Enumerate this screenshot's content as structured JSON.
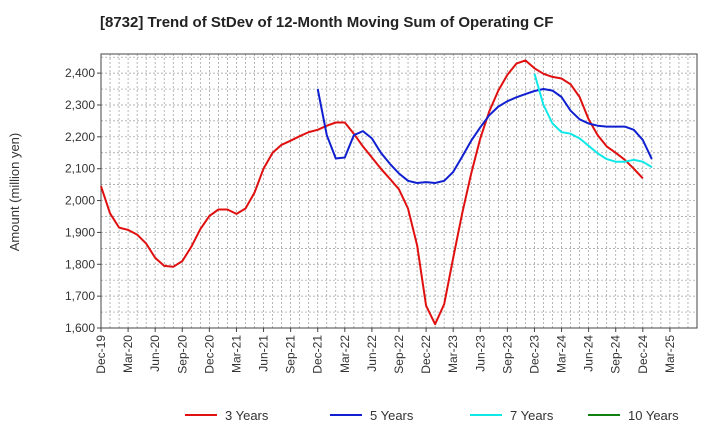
{
  "chart_data": {
    "type": "line",
    "title": "[8732]  Trend of StDev of 12-Month Moving Sum of Operating CF",
    "ylabel": "Amount (million yen)",
    "xlabel": "",
    "ylim": [
      1600,
      2460
    ],
    "yticks": [
      1600,
      1700,
      1800,
      1900,
      2000,
      2100,
      2200,
      2300,
      2400
    ],
    "ytick_labels": [
      "1,600",
      "1,700",
      "1,800",
      "1,900",
      "2,000",
      "2,100",
      "2,200",
      "2,300",
      "2,400"
    ],
    "x_range_months": [
      0,
      66
    ],
    "xtick_labels": [
      "Dec-19",
      "Mar-20",
      "Jun-20",
      "Sep-20",
      "Dec-20",
      "Mar-21",
      "Jun-21",
      "Sep-21",
      "Dec-21",
      "Mar-22",
      "Jun-22",
      "Sep-22",
      "Dec-22",
      "Mar-23",
      "Jun-23",
      "Sep-23",
      "Dec-23",
      "Mar-24",
      "Jun-24",
      "Sep-24",
      "Dec-24",
      "Mar-25"
    ],
    "grid": true,
    "legend_position": "bottom",
    "series": [
      {
        "name": "3 Years",
        "color": "#e01010",
        "start_month": 0,
        "values": [
          2045,
          1960,
          1915,
          1908,
          1893,
          1865,
          1820,
          1795,
          1792,
          1810,
          1855,
          1910,
          1952,
          1972,
          1972,
          1958,
          1975,
          2025,
          2100,
          2150,
          2175,
          2188,
          2202,
          2215,
          2222,
          2235,
          2245,
          2245,
          2210,
          2170,
          2135,
          2100,
          2068,
          2035,
          1975,
          1860,
          1670,
          1612,
          1675,
          1820,
          1960,
          2085,
          2195,
          2280,
          2345,
          2395,
          2430,
          2440,
          2415,
          2398,
          2388,
          2383,
          2365,
          2325,
          2255,
          2205,
          2170,
          2150,
          2128,
          2100,
          2070
        ]
      },
      {
        "name": "5 Years",
        "color": "#1020d0",
        "start_month": 24,
        "values": [
          2350,
          2205,
          2132,
          2135,
          2205,
          2218,
          2195,
          2150,
          2115,
          2085,
          2062,
          2055,
          2058,
          2055,
          2062,
          2090,
          2138,
          2188,
          2230,
          2268,
          2295,
          2312,
          2324,
          2334,
          2344,
          2350,
          2345,
          2325,
          2282,
          2255,
          2242,
          2235,
          2232,
          2232,
          2232,
          2222,
          2190,
          2130
        ]
      },
      {
        "name": "7 Years",
        "color": "#10e8e8",
        "start_month": 48,
        "values": [
          2398,
          2300,
          2242,
          2215,
          2210,
          2195,
          2172,
          2148,
          2130,
          2122,
          2122,
          2128,
          2122,
          2105
        ]
      },
      {
        "name": "10 Years",
        "color": "#108010",
        "start_month": null,
        "values": []
      }
    ]
  }
}
